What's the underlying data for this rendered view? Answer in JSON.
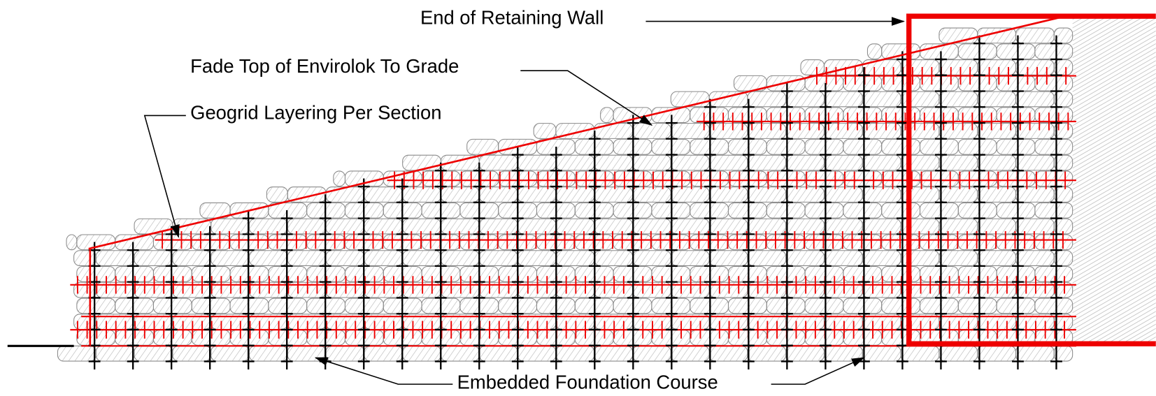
{
  "labels": {
    "end_of_wall": "End of Retaining Wall",
    "fade_top": "Fade Top of Envirolok To Grade",
    "geogrid": "Geogrid Layering Per Section",
    "foundation": "Embedded Foundation Course"
  }
}
